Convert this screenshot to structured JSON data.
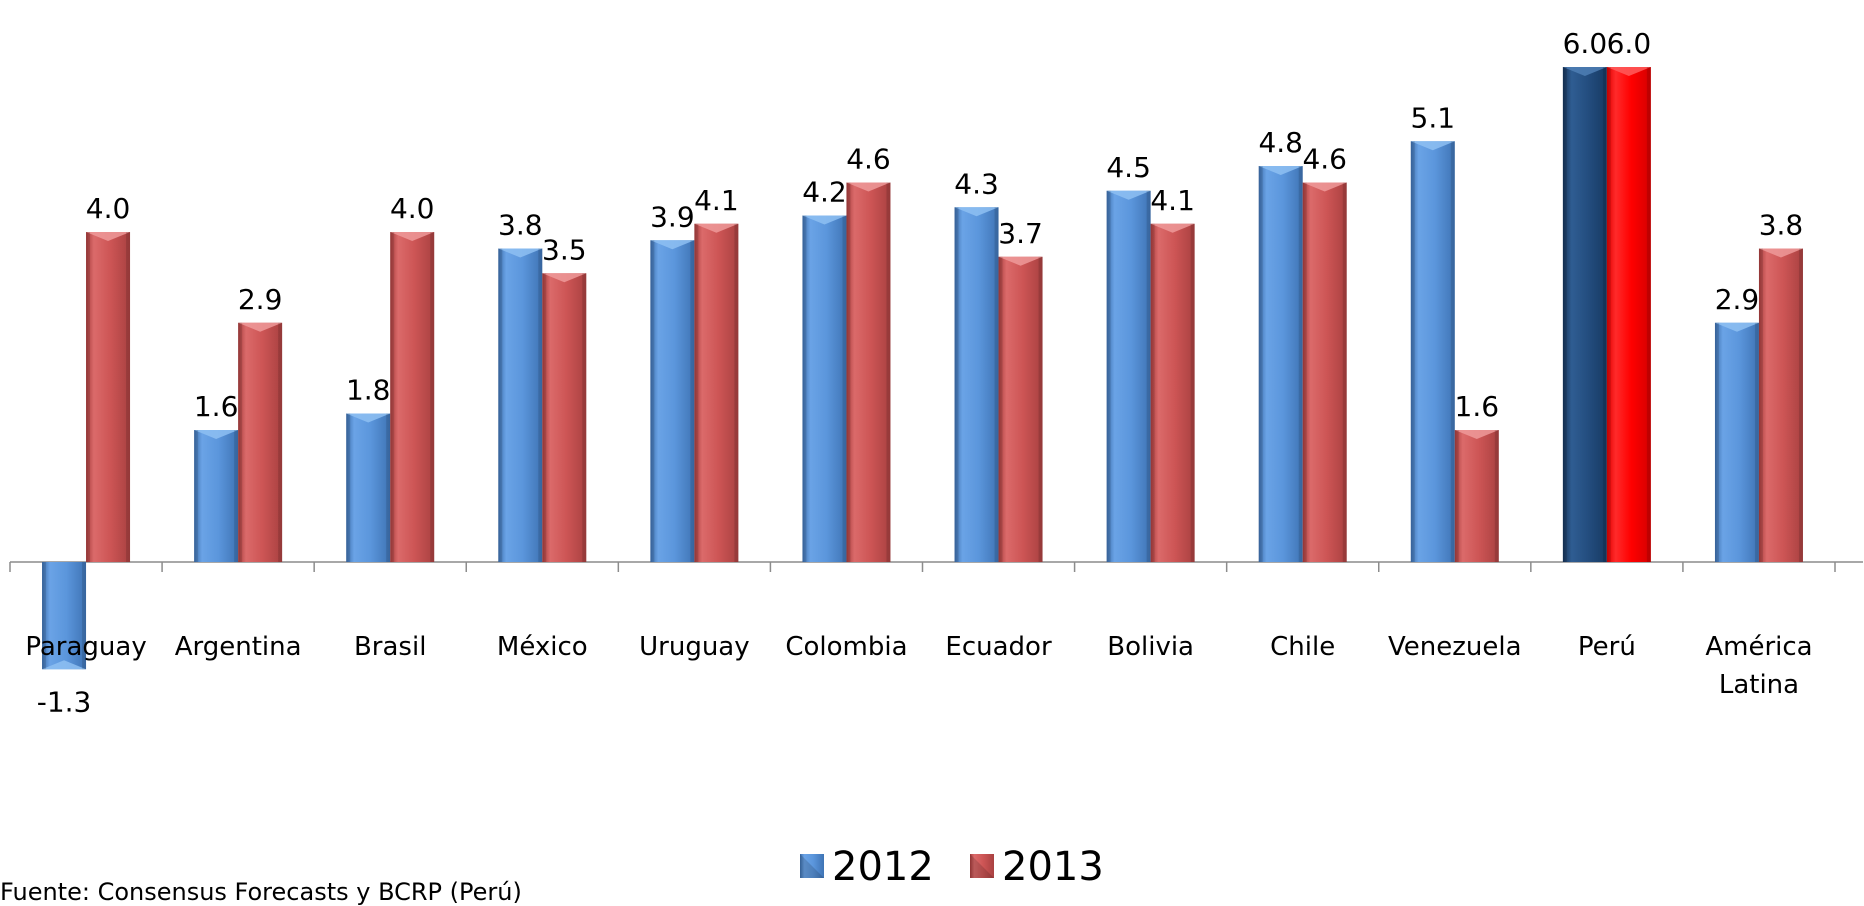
{
  "chart_data": {
    "type": "bar",
    "categories": [
      "Paraguay",
      "Argentina",
      "Brasil",
      "México",
      "Uruguay",
      "Colombia",
      "Ecuador",
      "Bolivia",
      "Chile",
      "Venezuela",
      "Perú",
      "América Latina"
    ],
    "series": [
      {
        "name": "2012",
        "values": [
          -1.3,
          1.6,
          1.8,
          3.8,
          3.9,
          4.2,
          4.3,
          4.5,
          4.8,
          5.1,
          6.0,
          2.9
        ],
        "labels": [
          "-1.3",
          "1.6",
          "1.8",
          "3.8",
          "3.9",
          "4.2",
          "4.3",
          "4.5",
          "4.8",
          "5.1",
          "6.0",
          "2.9"
        ],
        "color": "#5b96dc",
        "highlight_color": "#244e80"
      },
      {
        "name": "2013",
        "values": [
          4.0,
          2.9,
          4.0,
          3.5,
          4.1,
          4.6,
          3.7,
          4.1,
          4.6,
          1.6,
          6.0,
          3.8
        ],
        "labels": [
          "4.0",
          "2.9",
          "4.0",
          "3.5",
          "4.1",
          "4.6",
          "3.7",
          "4.1",
          "4.6",
          "1.6",
          "6.0",
          "3.8"
        ],
        "color": "#cd5555",
        "highlight_color": "#ff0000"
      }
    ],
    "highlight_category": "Perú",
    "ylim": [
      -2.2,
      6.6
    ],
    "grid": false,
    "legend_position": "bottom",
    "title": "",
    "xlabel": "",
    "ylabel": ""
  },
  "source_note": "Fuente: Consensus Forecasts y BCRP (Perú)"
}
